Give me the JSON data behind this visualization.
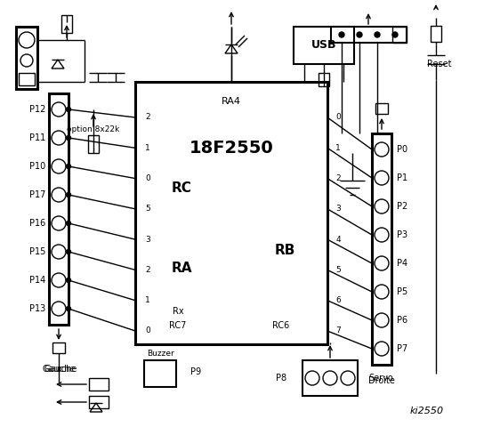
{
  "bg_color": "#ffffff",
  "rc_pins_left": [
    "2",
    "1",
    "0",
    "5",
    "3",
    "2",
    "1",
    "0"
  ],
  "rb_pins_right": [
    "0",
    "1",
    "2",
    "3",
    "4",
    "5",
    "6",
    "7"
  ],
  "left_connector_labels": [
    "P12",
    "P11",
    "P10",
    "P17",
    "P16",
    "P15",
    "P14",
    "P13"
  ],
  "right_connector_labels": [
    "P0",
    "P1",
    "P2",
    "P3",
    "P4",
    "P5",
    "P6",
    "P7"
  ]
}
